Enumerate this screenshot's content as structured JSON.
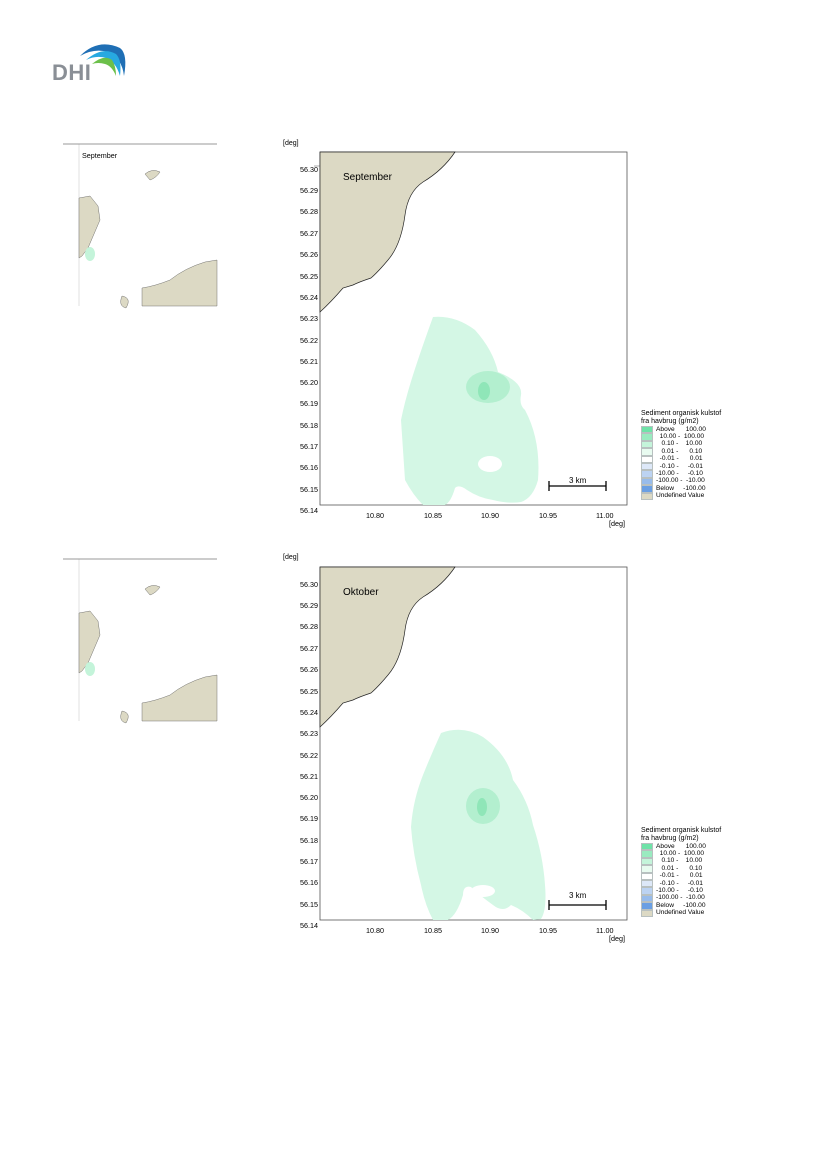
{
  "header": {
    "logo_text": "DHI",
    "logo_colors": [
      "#1f6fb5",
      "#27a9e1",
      "#6cc04a"
    ]
  },
  "maps": [
    {
      "month": "September",
      "y_unit": "[deg]",
      "x_unit": "[deg]",
      "y_ticks": [
        "56.30",
        "56.29",
        "56.28",
        "56.27",
        "56.26",
        "56.25",
        "56.24",
        "56.23",
        "56.22",
        "56.21",
        "56.20",
        "56.19",
        "56.18",
        "56.17",
        "56.16",
        "56.15",
        "56.14"
      ],
      "x_ticks": [
        "10.80",
        "10.85",
        "10.90",
        "10.95",
        "11.00"
      ],
      "scale_bar_label": "3 km"
    },
    {
      "month": "Oktober",
      "y_unit": "[deg]",
      "x_unit": "[deg]",
      "y_ticks": [
        "56.30",
        "56.29",
        "56.28",
        "56.27",
        "56.26",
        "56.25",
        "56.24",
        "56.23",
        "56.22",
        "56.21",
        "56.20",
        "56.19",
        "56.18",
        "56.17",
        "56.16",
        "56.15",
        "56.14"
      ],
      "x_ticks": [
        "10.80",
        "10.85",
        "10.90",
        "10.95",
        "11.00"
      ],
      "scale_bar_label": "3 km"
    }
  ],
  "legend": {
    "title_line1": "Sediment organisk kulstof",
    "title_line2": "fra havbrug (g/m2)",
    "items": [
      {
        "label": "Above      100.00",
        "color": "#6fe3a8"
      },
      {
        "label": "  10.00 -  100.00",
        "color": "#9aebc0"
      },
      {
        "label": "   0.10 -    10.00",
        "color": "#c4f4da"
      },
      {
        "label": "   0.01 -      0.10",
        "color": "#e8fbf0"
      },
      {
        "label": "  -0.01 -      0.01",
        "color": "#ffffff"
      },
      {
        "label": "  -0.10 -     -0.01",
        "color": "#dde8f8"
      },
      {
        "label": "-10.00 -     -0.10",
        "color": "#bcd3f2"
      },
      {
        "label": "-100.00 -  -10.00",
        "color": "#98bceb"
      },
      {
        "label": "Below     -100.00",
        "color": "#6a9fe3"
      },
      {
        "label": "Undefined Value",
        "color": "#dcd9c4"
      }
    ]
  },
  "colors": {
    "land": "#dcd9c4",
    "plume_low": "#d4f7e5",
    "plume_mid": "#b3efcf",
    "plume_high": "#8fe6b8"
  }
}
